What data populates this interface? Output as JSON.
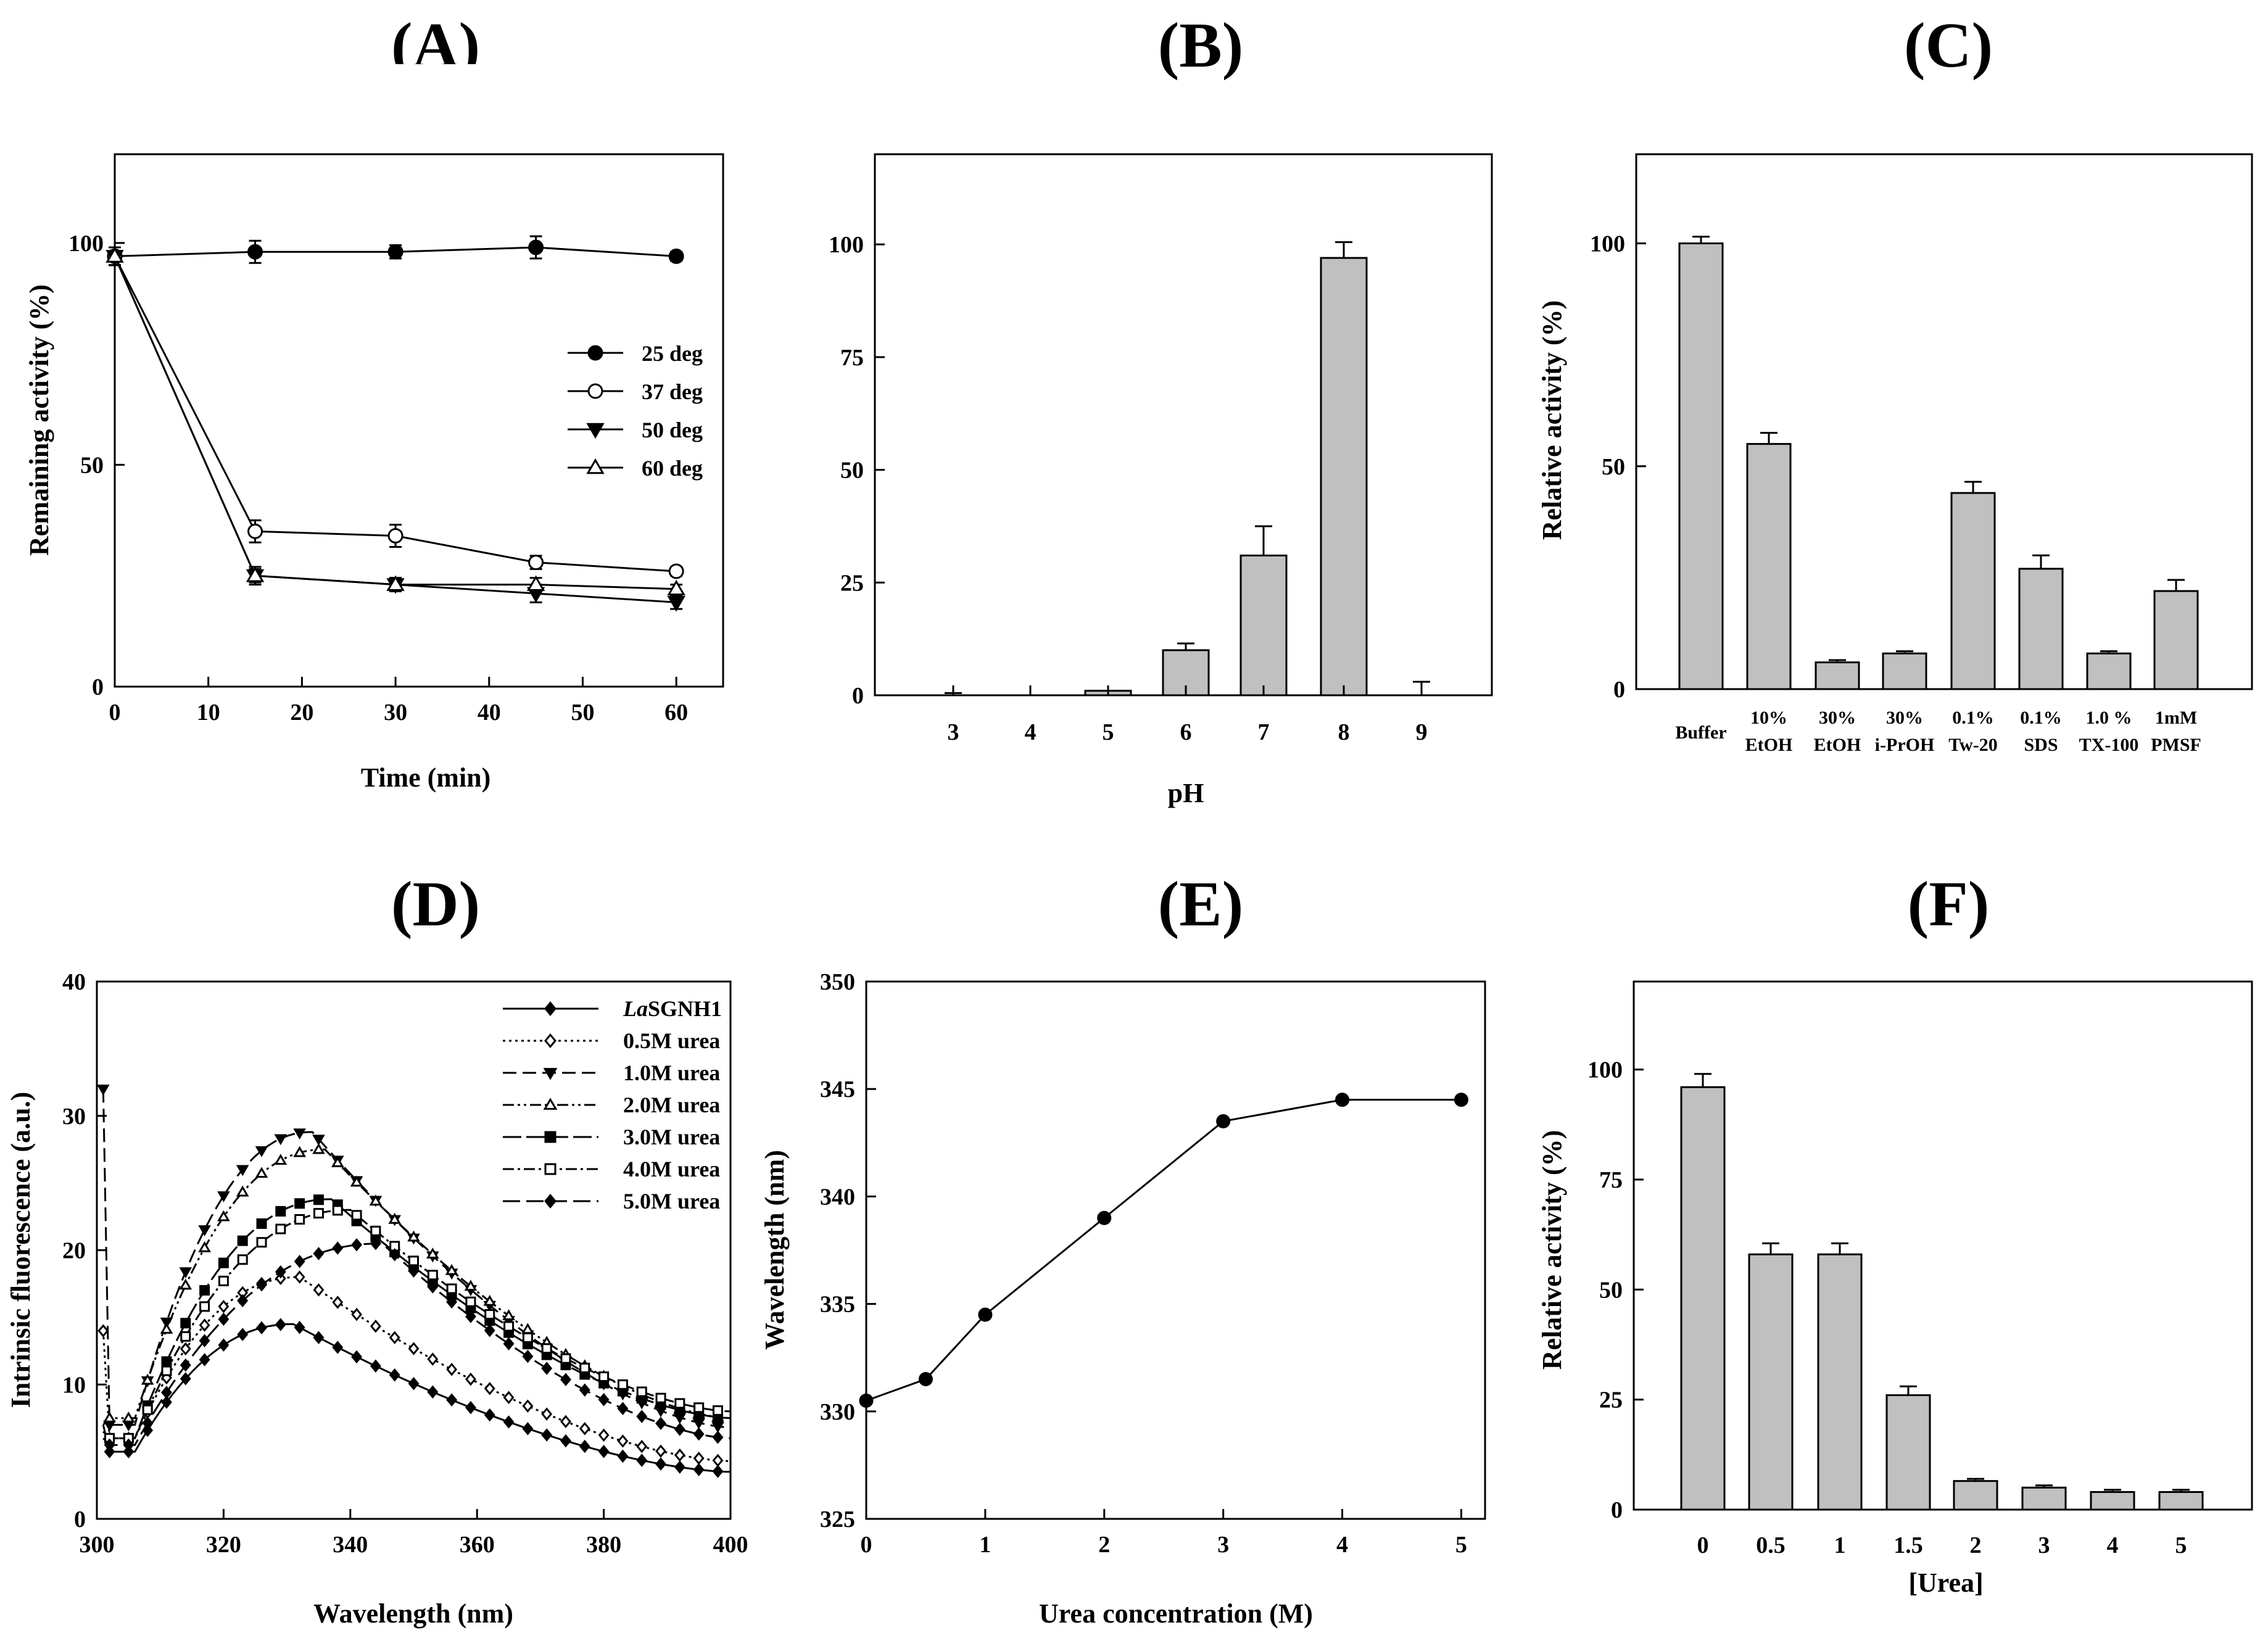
{
  "chart_data": [
    {
      "panel": "(A)",
      "type": "line",
      "xlabel": "Time (min)",
      "ylabel": "Remaining activity (%)",
      "xlim": [
        0,
        65
      ],
      "ylim": [
        0,
        120
      ],
      "xticks": [
        0,
        10,
        20,
        30,
        40,
        50,
        60
      ],
      "yticks": [
        0,
        50,
        100
      ],
      "legend_position": "center-right",
      "x": [
        0,
        15,
        30,
        45,
        60
      ],
      "series": [
        {
          "name": "25 deg",
          "marker": "filled-circle",
          "values": [
            97,
            98,
            98,
            99,
            97
          ],
          "errors": [
            2,
            2.5,
            1.5,
            2.5,
            1
          ]
        },
        {
          "name": "37 deg",
          "marker": "open-circle",
          "values": [
            97,
            35,
            34,
            28,
            26
          ],
          "errors": [
            2,
            2.5,
            2.5,
            1.5,
            1
          ]
        },
        {
          "name": "50 deg",
          "marker": "filled-triangle-down",
          "values": [
            97,
            25,
            23,
            21,
            19
          ],
          "errors": [
            2,
            2,
            1.5,
            2,
            1.5
          ]
        },
        {
          "name": "60 deg",
          "marker": "open-triangle-up",
          "values": [
            97,
            25,
            23,
            23,
            22
          ],
          "errors": [
            2,
            1.5,
            1.5,
            1.5,
            1
          ]
        }
      ]
    },
    {
      "panel": "(B)",
      "type": "bar",
      "xlabel": "pH",
      "ylabel": "",
      "ylim": [
        0,
        120
      ],
      "yticks": [
        0,
        25,
        50,
        75,
        100
      ],
      "categories": [
        "3",
        "4",
        "5",
        "6",
        "7",
        "8",
        "9"
      ],
      "values": [
        0,
        0,
        1,
        10,
        31,
        97,
        0
      ],
      "errors": [
        0.5,
        0,
        0,
        1.5,
        6.5,
        3.5,
        3
      ]
    },
    {
      "panel": "(C)",
      "type": "bar",
      "xlabel": "",
      "ylabel": "Relative activity (%)",
      "ylim": [
        0,
        120
      ],
      "yticks": [
        0,
        50,
        100
      ],
      "categories": [
        [
          "Buffer"
        ],
        [
          "10%",
          "EtOH"
        ],
        [
          "30%",
          "EtOH"
        ],
        [
          "30%",
          "i-PrOH"
        ],
        [
          "0.1%",
          "Tw-20"
        ],
        [
          "0.1%",
          "SDS"
        ],
        [
          "1.0 %",
          "TX-100"
        ],
        [
          "1mM",
          "PMSF"
        ]
      ],
      "values": [
        100,
        55,
        6,
        8,
        44,
        27,
        8,
        22
      ],
      "errors": [
        1.5,
        2.5,
        0.5,
        0.5,
        2.5,
        3,
        0.5,
        2.5
      ]
    },
    {
      "panel": "(D)",
      "type": "line",
      "xlabel": "Wavelength (nm)",
      "ylabel": "Intrinsic fluorescence (a.u.)",
      "xlim": [
        300,
        400
      ],
      "ylim": [
        0,
        40
      ],
      "xticks": [
        300,
        320,
        340,
        360,
        380,
        400
      ],
      "yticks": [
        0,
        10,
        20,
        30,
        40
      ],
      "legend_position": "top-right",
      "series": [
        {
          "name": "LaSGNH1",
          "name_italic": "La",
          "name_rest": "SGNH1",
          "dash": "",
          "marker": "filled-diamond",
          "peak_x": 331,
          "peak_y": 14.5,
          "start_y": 7,
          "dip_y": 5,
          "end_y": 3.5,
          "spike_y": null
        },
        {
          "name": "0.5M urea",
          "dash": "4,6",
          "marker": "open-diamond",
          "peak_x": 332,
          "peak_y": 18,
          "start_y": 14,
          "dip_y": 6,
          "end_y": 4.3,
          "spike_y": 14
        },
        {
          "name": "1.0M urea",
          "dash": "22,10",
          "marker": "filled-triangle-down",
          "peak_x": 334,
          "peak_y": 28.8,
          "start_y": 32,
          "dip_y": 7,
          "end_y": 6.8,
          "spike_y": 32
        },
        {
          "name": "2.0M urea",
          "dash": "18,6,4,6,4,6",
          "marker": "open-triangle-up",
          "peak_x": 336,
          "peak_y": 27.5,
          "start_y": 7,
          "dip_y": 7.5,
          "end_y": 7.5,
          "spike_y": null
        },
        {
          "name": "3.0M urea",
          "dash": "30,8",
          "marker": "filled-square",
          "peak_x": 337,
          "peak_y": 23.8,
          "start_y": 6.5,
          "dip_y": 6,
          "end_y": 7.5,
          "spike_y": null
        },
        {
          "name": "4.0M urea",
          "dash": "18,6,4,6",
          "marker": "open-square",
          "peak_x": 340,
          "peak_y": 23,
          "start_y": 6.5,
          "dip_y": 6,
          "end_y": 8,
          "spike_y": null
        },
        {
          "name": "5.0M urea",
          "dash": "28,10",
          "marker": "filled-diamond",
          "peak_x": 345,
          "peak_y": 20.5,
          "start_y": 6,
          "dip_y": 5.5,
          "end_y": 6,
          "spike_y": null
        }
      ]
    },
    {
      "panel": "(E)",
      "type": "line",
      "xlabel": "Urea concentration (M)",
      "ylabel": "Wavelength (nm)",
      "xlim": [
        0,
        5.2
      ],
      "ylim": [
        325,
        350
      ],
      "xticks": [
        0,
        1,
        2,
        3,
        4,
        5
      ],
      "yticks": [
        325,
        330,
        335,
        340,
        345,
        350
      ],
      "x": [
        0,
        0.5,
        1,
        2,
        3,
        4,
        5
      ],
      "values": [
        330.5,
        331.5,
        334.5,
        339,
        343.5,
        344.5,
        344.5
      ]
    },
    {
      "panel": "(F)",
      "type": "bar",
      "xlabel": "[Urea]",
      "ylabel": "Relative activity (%)",
      "ylim": [
        0,
        120
      ],
      "yticks": [
        0,
        25,
        50,
        75,
        100
      ],
      "categories": [
        "0",
        "0.5",
        "1",
        "1.5",
        "2",
        "3",
        "4",
        "5"
      ],
      "values": [
        96,
        58,
        58,
        26,
        6.5,
        5,
        4,
        4
      ],
      "errors": [
        3,
        2.5,
        2.5,
        2,
        0.5,
        0.5,
        0.5,
        0.5
      ]
    }
  ]
}
